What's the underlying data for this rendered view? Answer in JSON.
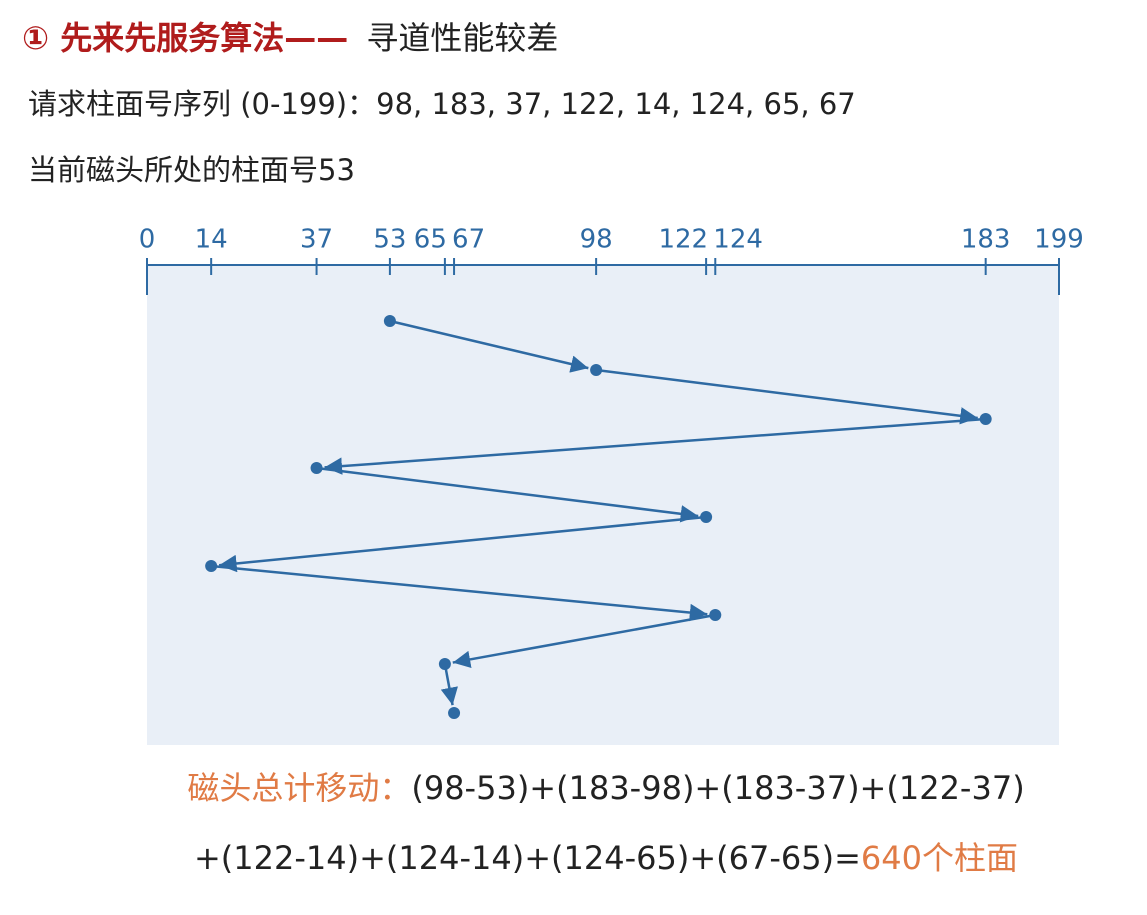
{
  "slide": {
    "title": "① 先来先服务算法——",
    "title_suffix": "寻道性能较差",
    "request_line": "请求柱面号序列 (0-199)：98, 183, 37, 122, 14, 124, 65, 67",
    "current_line": "当前磁头所处的柱面号53",
    "total_label": "磁头总计移动：",
    "formula_1": "(98-53)+(183-98)+(183-37)+(122-37)",
    "formula_2": "+(122-14)+(124-14)+(124-65)+(67-65)=",
    "result": "640",
    "result_unit": "个柱面"
  },
  "chart_data": {
    "type": "seek",
    "values": [
      53,
      98,
      183,
      37,
      122,
      14,
      124,
      65,
      67
    ],
    "color": "#2e6aa3",
    "xlim": [
      0,
      199
    ],
    "xticks": [
      0,
      14,
      37,
      53,
      65,
      67,
      98,
      122,
      124,
      183,
      199
    ]
  }
}
